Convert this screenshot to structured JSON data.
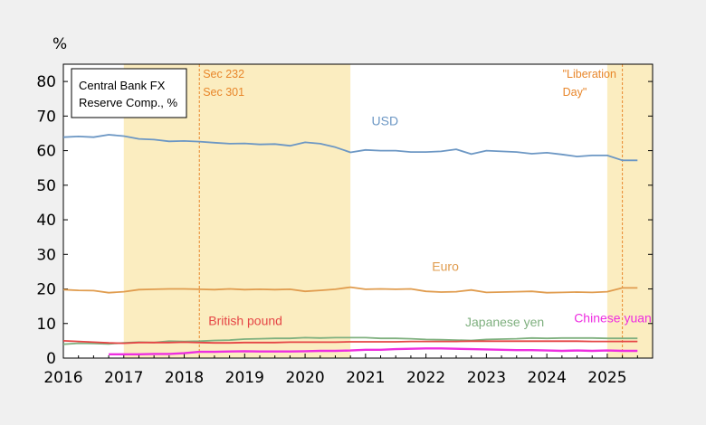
{
  "chart_data": {
    "type": "line",
    "title": "Central Bank FX Reserve Comp., %",
    "title_lines": [
      "Central Bank FX",
      "Reserve Comp., %"
    ],
    "ylabel": "%",
    "xlim": [
      2016,
      2025.75
    ],
    "ylim": [
      0,
      85
    ],
    "x_ticks": [
      2016,
      2017,
      2018,
      2019,
      2020,
      2021,
      2022,
      2023,
      2024,
      2025
    ],
    "y_ticks": [
      0,
      10,
      20,
      30,
      40,
      50,
      60,
      70,
      80
    ],
    "shaded_periods": [
      {
        "start": 2017.0,
        "end": 2020.75,
        "color": "#fbedc0"
      },
      {
        "start": 2025.0,
        "end": 2025.75,
        "color": "#fbedc0"
      }
    ],
    "events": [
      {
        "x": 2018.25,
        "lines": [
          "Sec 232",
          "Sec 301"
        ]
      },
      {
        "x": 2025.25,
        "lines": [
          "\"Liberation",
          "Day\""
        ]
      }
    ],
    "series": [
      {
        "name": "USD",
        "color": "#6c97c4",
        "x": [
          2016.0,
          2016.25,
          2016.5,
          2016.75,
          2017.0,
          2017.25,
          2017.5,
          2017.75,
          2018.0,
          2018.25,
          2018.5,
          2018.75,
          2019.0,
          2019.25,
          2019.5,
          2019.75,
          2020.0,
          2020.25,
          2020.5,
          2020.75,
          2021.0,
          2021.25,
          2021.5,
          2021.75,
          2022.0,
          2022.25,
          2022.5,
          2022.75,
          2023.0,
          2023.25,
          2023.5,
          2023.75,
          2024.0,
          2024.25,
          2024.5,
          2024.75,
          2025.0,
          2025.25,
          2025.5
        ],
        "values": [
          63.9,
          64.1,
          63.9,
          64.6,
          64.2,
          63.4,
          63.2,
          62.7,
          62.8,
          62.6,
          62.3,
          62.0,
          62.1,
          61.8,
          61.9,
          61.4,
          62.4,
          62.0,
          61.0,
          59.5,
          60.2,
          60.0,
          60.0,
          59.6,
          59.6,
          59.8,
          60.4,
          59.0,
          60.0,
          59.8,
          59.6,
          59.1,
          59.4,
          58.9,
          58.3,
          58.6,
          58.6,
          57.2,
          57.2
        ]
      },
      {
        "name": "Euro",
        "color": "#e09c4e",
        "x": [
          2016.0,
          2016.25,
          2016.5,
          2016.75,
          2017.0,
          2017.25,
          2017.5,
          2017.75,
          2018.0,
          2018.25,
          2018.5,
          2018.75,
          2019.0,
          2019.25,
          2019.5,
          2019.75,
          2020.0,
          2020.25,
          2020.5,
          2020.75,
          2021.0,
          2021.25,
          2021.5,
          2021.75,
          2022.0,
          2022.25,
          2022.5,
          2022.75,
          2023.0,
          2023.25,
          2023.5,
          2023.75,
          2024.0,
          2024.25,
          2024.5,
          2024.75,
          2025.0,
          2025.25,
          2025.5
        ],
        "values": [
          19.8,
          19.6,
          19.5,
          18.9,
          19.2,
          19.8,
          19.9,
          20.0,
          20.0,
          19.9,
          19.8,
          20.0,
          19.8,
          19.9,
          19.8,
          19.9,
          19.3,
          19.6,
          19.9,
          20.5,
          19.9,
          20.0,
          19.9,
          20.0,
          19.3,
          19.1,
          19.2,
          19.7,
          19.0,
          19.1,
          19.2,
          19.3,
          18.9,
          19.0,
          19.1,
          19.0,
          19.2,
          20.3,
          20.3
        ]
      },
      {
        "name": "Japanese yen",
        "color": "#7fb07f",
        "x": [
          2016.0,
          2016.25,
          2016.5,
          2016.75,
          2017.0,
          2017.25,
          2017.5,
          2017.75,
          2018.0,
          2018.25,
          2018.5,
          2018.75,
          2019.0,
          2019.25,
          2019.5,
          2019.75,
          2020.0,
          2020.25,
          2020.5,
          2020.75,
          2021.0,
          2021.25,
          2021.5,
          2021.75,
          2022.0,
          2022.25,
          2022.5,
          2022.75,
          2023.0,
          2023.25,
          2023.5,
          2023.75,
          2024.0,
          2024.25,
          2024.5,
          2024.75,
          2025.0,
          2025.25,
          2025.5
        ],
        "values": [
          4.0,
          4.3,
          4.2,
          4.1,
          4.4,
          4.6,
          4.5,
          4.9,
          4.8,
          4.9,
          5.1,
          5.2,
          5.5,
          5.6,
          5.7,
          5.7,
          5.9,
          5.8,
          5.9,
          5.9,
          5.9,
          5.7,
          5.7,
          5.6,
          5.4,
          5.3,
          5.2,
          5.1,
          5.4,
          5.5,
          5.6,
          5.8,
          5.7,
          5.8,
          5.8,
          5.8,
          5.7,
          5.7,
          5.7
        ]
      },
      {
        "name": "British pound",
        "color": "#e54545",
        "x": [
          2016.0,
          2016.25,
          2016.5,
          2016.75,
          2017.0,
          2017.25,
          2017.5,
          2017.75,
          2018.0,
          2018.25,
          2018.5,
          2018.75,
          2019.0,
          2019.25,
          2019.5,
          2019.75,
          2020.0,
          2020.25,
          2020.5,
          2020.75,
          2021.0,
          2021.25,
          2021.5,
          2021.75,
          2022.0,
          2022.25,
          2022.5,
          2022.75,
          2023.0,
          2023.25,
          2023.5,
          2023.75,
          2024.0,
          2024.25,
          2024.5,
          2024.75,
          2025.0,
          2025.25,
          2025.5
        ],
        "values": [
          5.0,
          4.8,
          4.6,
          4.4,
          4.3,
          4.5,
          4.5,
          4.5,
          4.6,
          4.5,
          4.4,
          4.4,
          4.5,
          4.5,
          4.5,
          4.6,
          4.6,
          4.6,
          4.6,
          4.7,
          4.7,
          4.7,
          4.7,
          4.8,
          4.8,
          4.8,
          4.8,
          4.9,
          4.9,
          4.9,
          4.9,
          4.9,
          4.9,
          4.9,
          4.9,
          4.8,
          4.8,
          4.8,
          4.8
        ]
      },
      {
        "name": "Chinese yuan",
        "color": "#ee2ee0",
        "x": [
          2016.75,
          2017.0,
          2017.25,
          2017.5,
          2017.75,
          2018.0,
          2018.25,
          2018.5,
          2018.75,
          2019.0,
          2019.25,
          2019.5,
          2019.75,
          2020.0,
          2020.25,
          2020.5,
          2020.75,
          2021.0,
          2021.25,
          2021.5,
          2021.75,
          2022.0,
          2022.25,
          2022.5,
          2022.75,
          2023.0,
          2023.25,
          2023.5,
          2023.75,
          2024.0,
          2024.25,
          2024.5,
          2024.75,
          2025.0,
          2025.25,
          2025.5
        ],
        "values": [
          1.1,
          1.1,
          1.1,
          1.2,
          1.2,
          1.4,
          1.8,
          1.8,
          1.9,
          2.0,
          1.9,
          1.9,
          1.9,
          2.0,
          2.1,
          2.1,
          2.2,
          2.4,
          2.4,
          2.6,
          2.7,
          2.8,
          2.8,
          2.7,
          2.6,
          2.5,
          2.4,
          2.3,
          2.3,
          2.2,
          2.1,
          2.2,
          2.1,
          2.2,
          2.1,
          2.1
        ]
      }
    ],
    "series_labels": [
      {
        "name": "USD",
        "x": 2021.1,
        "y": 67.3
      },
      {
        "name": "Euro",
        "x": 2022.1,
        "y": 25.2
      },
      {
        "name": "British pound",
        "x": 2018.4,
        "y": 9.5
      },
      {
        "name": "Japanese yen",
        "x": 2022.65,
        "y": 9.2
      },
      {
        "name": "Chinese yuan",
        "x": 2024.45,
        "y": 10.3
      }
    ]
  }
}
